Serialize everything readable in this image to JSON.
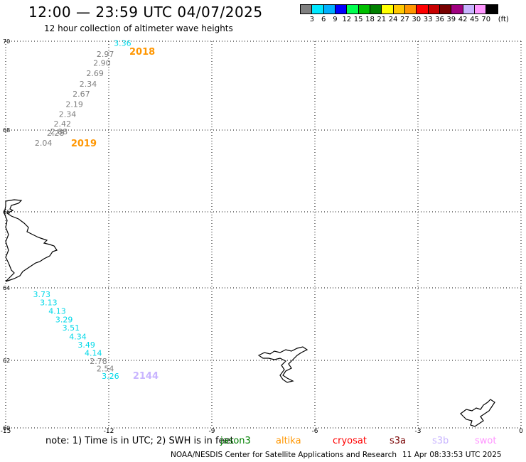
{
  "header": {
    "title": "12:00 — 23:59 UTC 04/07/2025",
    "subtitle": "12 hour collection of altimeter wave heights"
  },
  "legend": {
    "colors": [
      "#808080",
      "#00e8ff",
      "#00b0ff",
      "#0000ff",
      "#00ff50",
      "#00c000",
      "#008000",
      "#ffff00",
      "#ffc800",
      "#ff9600",
      "#ff0000",
      "#c80000",
      "#780000",
      "#a00080",
      "#c8b4ff",
      "#ff96ff",
      "#000000"
    ],
    "ticks": [
      "3",
      "6",
      "9",
      "12",
      "15",
      "18",
      "21",
      "24",
      "27",
      "30",
      "33",
      "36",
      "39",
      "42",
      "45",
      "70"
    ],
    "unit": "(ft)"
  },
  "map": {
    "lon_min": -15,
    "lon_max": 0,
    "lat_min": 60,
    "lat_max": 70,
    "x_ticks": [
      "-15",
      "-12",
      "-9",
      "-6",
      "-3",
      "0"
    ],
    "y_ticks": [
      "70",
      "68",
      "66",
      "64",
      "62",
      "60"
    ],
    "grid": "dotted",
    "tracks": [
      {
        "color": "#808080",
        "points": [
          {
            "lon": -12.1,
            "lat": 69.65,
            "value": "2.97"
          },
          {
            "lon": -12.2,
            "lat": 69.45,
            "value": "2.90"
          },
          {
            "lon": -12.4,
            "lat": 69.22,
            "value": "2.69"
          },
          {
            "lon": -12.6,
            "lat": 68.98,
            "value": "2.34"
          },
          {
            "lon": -12.8,
            "lat": 68.75,
            "value": "2.67"
          },
          {
            "lon": -13.0,
            "lat": 68.52,
            "value": "2.19"
          },
          {
            "lon": -13.2,
            "lat": 68.3,
            "value": "2.34"
          },
          {
            "lon": -13.35,
            "lat": 68.08,
            "value": "2.42"
          },
          {
            "lon": -13.55,
            "lat": 67.86,
            "value": "2.28"
          },
          {
            "lon": -13.45,
            "lat": 67.9,
            "value": "2.88"
          },
          {
            "lon": -13.9,
            "lat": 67.62,
            "value": "2.04"
          }
        ]
      },
      {
        "color": "#00d8e8",
        "points": [
          {
            "lon": -11.6,
            "lat": 69.9,
            "value": "3.36"
          }
        ]
      },
      {
        "color": "#00d8e8",
        "points": [
          {
            "lon": -13.95,
            "lat": 63.75,
            "value": "3.73"
          },
          {
            "lon": -13.75,
            "lat": 63.52,
            "value": "3.13"
          },
          {
            "lon": -13.5,
            "lat": 63.28,
            "value": "4.13"
          },
          {
            "lon": -13.3,
            "lat": 63.05,
            "value": "3.29"
          },
          {
            "lon": -13.1,
            "lat": 62.82,
            "value": "3.51"
          },
          {
            "lon": -12.9,
            "lat": 62.58,
            "value": "4.34"
          },
          {
            "lon": -12.65,
            "lat": 62.35,
            "value": "3.49"
          },
          {
            "lon": -12.45,
            "lat": 62.13,
            "value": "4.14"
          }
        ]
      },
      {
        "color": "#808080",
        "points": [
          {
            "lon": -12.3,
            "lat": 61.9,
            "value": "2.78"
          },
          {
            "lon": -12.1,
            "lat": 61.67,
            "value": "2.54"
          }
        ]
      },
      {
        "color": "#00d8e8",
        "points": [
          {
            "lon": -11.95,
            "lat": 61.45,
            "value": "3.26"
          }
        ]
      }
    ],
    "hour_labels": [
      {
        "lon": -11.4,
        "lat": 69.7,
        "text": "2018",
        "color": "#ff9600"
      },
      {
        "lon": -13.1,
        "lat": 67.6,
        "text": "2019",
        "color": "#ff9600"
      },
      {
        "lon": -11.3,
        "lat": 61.45,
        "text": "2144",
        "color": "#c8b4ff"
      }
    ]
  },
  "footer": {
    "note": "note:  1) Time is in UTC; 2) SWH is in feet",
    "satellites": [
      {
        "name": "jason3",
        "color": "#008000"
      },
      {
        "name": "altika",
        "color": "#ff9600"
      },
      {
        "name": "cryosat",
        "color": "#ff0000"
      },
      {
        "name": "s3a",
        "color": "#780000"
      },
      {
        "name": "s3b",
        "color": "#c8b4ff"
      },
      {
        "name": "swot",
        "color": "#ff96ff"
      }
    ],
    "credit": "NOAA/NESDIS Center for Satellite Applications and Research",
    "timestamp": "11 Apr 08:33:53 UTC 2025"
  }
}
